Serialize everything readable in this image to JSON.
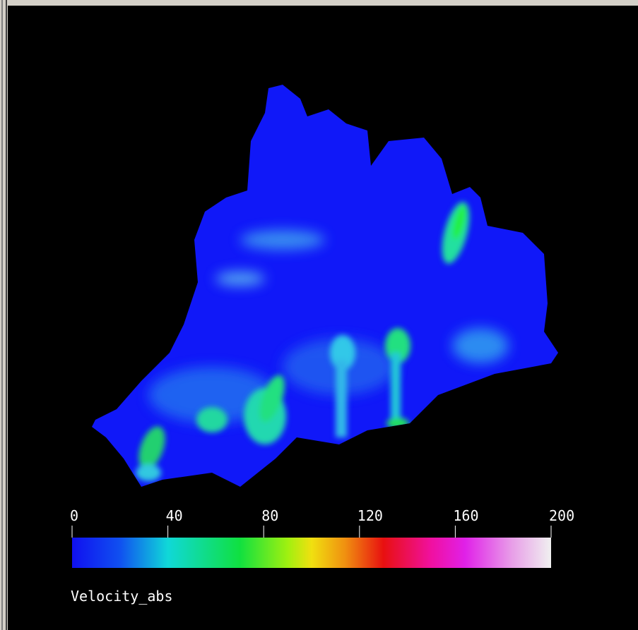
{
  "colorbar": {
    "range": [
      0,
      200
    ],
    "ticks": [
      0,
      40,
      80,
      120,
      160,
      200
    ],
    "label": "Velocity_abs"
  }
}
